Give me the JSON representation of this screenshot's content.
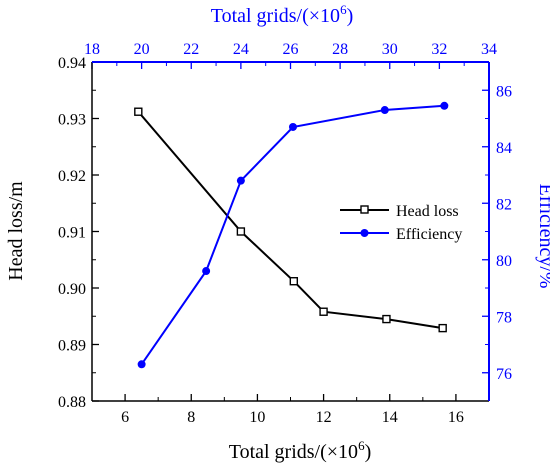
{
  "chart_data": {
    "type": "line",
    "title": "",
    "xlabel": "Total grids/(×10",
    "xlabel_sup": "6",
    "xlabel_suffix": ")",
    "x2label": "Total grids/(×10",
    "x2label_sup": "6",
    "x2label_suffix": ")",
    "ylabel": "Head loss/m",
    "y2label": "Efficiency/%",
    "xlim": [
      5,
      17
    ],
    "x2lim": [
      18,
      34
    ],
    "ylim": [
      0.88,
      0.94
    ],
    "y2lim": [
      75,
      87
    ],
    "x_ticks": [
      "6",
      "8",
      "10",
      "12",
      "14",
      "16"
    ],
    "x2_ticks": [
      "18",
      "20",
      "22",
      "24",
      "26",
      "28",
      "30",
      "32",
      "34"
    ],
    "y_ticks": [
      "0.88",
      "0.89",
      "0.90",
      "0.91",
      "0.92",
      "0.93",
      "0.94"
    ],
    "y2_ticks": [
      "76",
      "78",
      "80",
      "82",
      "84",
      "86"
    ],
    "grid": false,
    "legend_position": "right-middle",
    "series": [
      {
        "name": "Head loss",
        "axis": "bottom-left",
        "color": "#000000",
        "marker": "square-open",
        "x": [
          6.4,
          9.5,
          11.1,
          12.0,
          13.9,
          15.6
        ],
        "values": [
          0.9312,
          0.91,
          0.9012,
          0.8958,
          0.8945,
          0.8929
        ]
      },
      {
        "name": "Efficiency",
        "axis": "top-right",
        "color": "#0000ff",
        "marker": "circle-filled",
        "x": [
          20.0,
          22.6,
          24.0,
          26.1,
          29.8,
          32.2
        ],
        "values": [
          76.3,
          79.6,
          82.8,
          84.7,
          85.3,
          85.45
        ]
      }
    ]
  }
}
